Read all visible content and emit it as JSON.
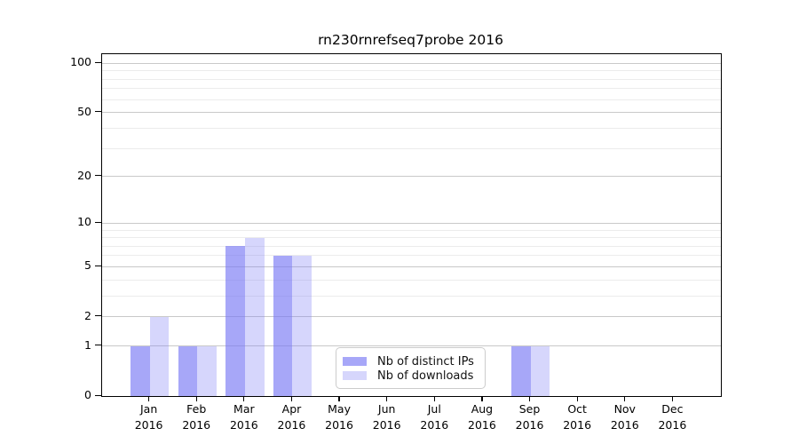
{
  "figure": {
    "background": "#ffffff"
  },
  "chart_data": {
    "type": "bar",
    "title": "rn230rnrefseq7probe 2016",
    "categories": [
      "Jan",
      "Feb",
      "Mar",
      "Apr",
      "May",
      "Jun",
      "Jul",
      "Aug",
      "Sep",
      "Oct",
      "Nov",
      "Dec"
    ],
    "x_tick_year": "2016",
    "series": [
      {
        "name": "Nb of distinct IPs",
        "color": "#7878f5",
        "alpha": 0.65,
        "values": [
          1,
          1,
          7,
          6,
          0,
          0,
          0,
          0,
          1,
          0,
          0,
          0
        ]
      },
      {
        "name": "Nb of downloads",
        "color": "#7878f5",
        "alpha": 0.3,
        "values": [
          2,
          1,
          8,
          6,
          0,
          0,
          0,
          0,
          1,
          0,
          0,
          0
        ]
      }
    ],
    "y_axis": {
      "scale": "log10(1+v)",
      "major_ticks": [
        0,
        1,
        2,
        5,
        10,
        20,
        50,
        100
      ],
      "minor_gridlines": [
        3,
        4,
        6,
        7,
        8,
        9,
        30,
        40,
        60,
        70,
        80,
        90
      ],
      "ylim": [
        0,
        100
      ]
    },
    "legend": {
      "position": "lower-center",
      "items": [
        "Nb of distinct IPs",
        "Nb of downloads"
      ]
    },
    "grid": true
  },
  "colors": {
    "bar_distinct_ips_on_white": "#a9a9f5",
    "bar_downloads_on_white": "#d8d8fa",
    "major_grid": "#c9c9c9",
    "minor_grid": "#ececec",
    "axis": "#000000",
    "legend_border": "#cccccc",
    "text": "#000000"
  }
}
